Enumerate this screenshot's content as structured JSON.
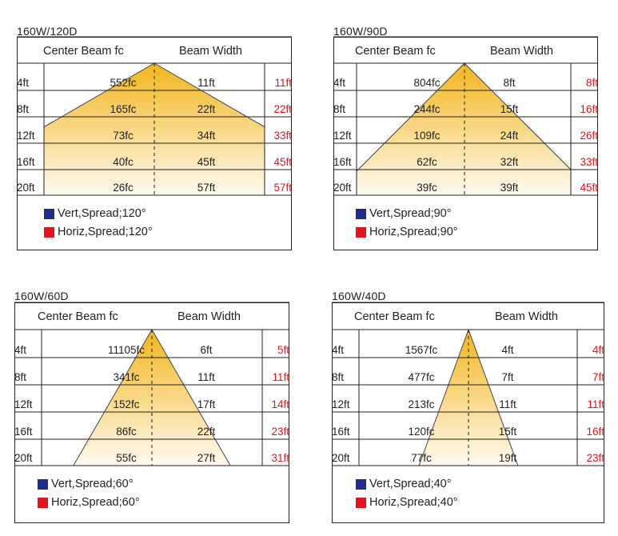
{
  "legend_colors": {
    "vert": "#1f2c8e",
    "horiz": "#e01520"
  },
  "beam_colors": {
    "top": "#f2b51c",
    "bottom": "#fffaf0"
  },
  "panels": [
    {
      "title": "160W/120D",
      "header_center": "Center Beam fc",
      "header_width": "Beam Width",
      "beam_angle_deg": 120,
      "rows": [
        {
          "dist": "4ft",
          "fc": "552fc",
          "width": "11ft",
          "horiz": "11ft"
        },
        {
          "dist": "8ft",
          "fc": "165fc",
          "width": "22ft",
          "horiz": "22ft"
        },
        {
          "dist": "12ft",
          "fc": "73fc",
          "width": "34ft",
          "horiz": "33ft"
        },
        {
          "dist": "16ft",
          "fc": "40fc",
          "width": "45ft",
          "horiz": "45ft"
        },
        {
          "dist": "20ft",
          "fc": "26fc",
          "width": "57ft",
          "horiz": "57ft"
        }
      ],
      "legend_vert": "Vert,Spread;120°",
      "legend_horiz": "Horiz,Spread;120°"
    },
    {
      "title": "160W/90D",
      "header_center": "Center Beam fc",
      "header_width": "Beam Width",
      "beam_angle_deg": 90,
      "rows": [
        {
          "dist": "4ft",
          "fc": "804fc",
          "width": "8ft",
          "horiz": "8ft"
        },
        {
          "dist": "8ft",
          "fc": "244fc",
          "width": "15ft",
          "horiz": "16ft"
        },
        {
          "dist": "12ft",
          "fc": "109fc",
          "width": "24ft",
          "horiz": "26ft"
        },
        {
          "dist": "16ft",
          "fc": "62fc",
          "width": "32ft",
          "horiz": "33ft"
        },
        {
          "dist": "20ft",
          "fc": "39fc",
          "width": "39ft",
          "horiz": "45ft"
        }
      ],
      "legend_vert": "Vert,Spread;90°",
      "legend_horiz": "Horiz,Spread;90°"
    },
    {
      "title": "160W/60D",
      "header_center": "Center Beam fc",
      "header_width": "Beam Width",
      "beam_angle_deg": 60,
      "rows": [
        {
          "dist": "4ft",
          "fc": "11105fc",
          "width": "6ft",
          "horiz": "5ft"
        },
        {
          "dist": "8ft",
          "fc": "341fc",
          "width": "11ft",
          "horiz": "11ft"
        },
        {
          "dist": "12ft",
          "fc": "152fc",
          "width": "17ft",
          "horiz": "14ft"
        },
        {
          "dist": "16ft",
          "fc": "86fc",
          "width": "22ft",
          "horiz": "23ft"
        },
        {
          "dist": "20ft",
          "fc": "55fc",
          "width": "27ft",
          "horiz": "31ft"
        }
      ],
      "legend_vert": "Vert,Spread;60°",
      "legend_horiz": "Horiz,Spread;60°"
    },
    {
      "title": "160W/40D",
      "header_center": "Center Beam fc",
      "header_width": "Beam Width",
      "beam_angle_deg": 40,
      "rows": [
        {
          "dist": "4ft",
          "fc": "1567fc",
          "width": "4ft",
          "horiz": "4ft"
        },
        {
          "dist": "8ft",
          "fc": "477fc",
          "width": "7ft",
          "horiz": "7ft"
        },
        {
          "dist": "12ft",
          "fc": "213fc",
          "width": "11ft",
          "horiz": "11ft"
        },
        {
          "dist": "16ft",
          "fc": "120fc",
          "width": "15ft",
          "horiz": "16ft"
        },
        {
          "dist": "20ft",
          "fc": "77fc",
          "width": "19ft",
          "horiz": "23ft"
        }
      ],
      "legend_vert": "Vert,Spread;40°",
      "legend_horiz": "Horiz,Spread;40°"
    }
  ]
}
